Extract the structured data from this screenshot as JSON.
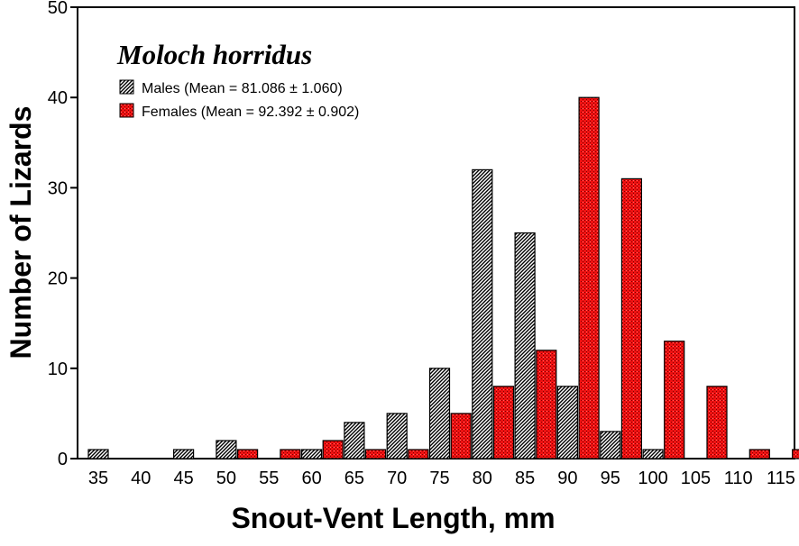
{
  "chart_data": {
    "type": "bar",
    "title": "Moloch horridus",
    "xlabel": "Snout-Vent Length, mm",
    "ylabel": "Number of Lizards",
    "ylim": [
      0,
      50
    ],
    "yticks": [
      0,
      10,
      20,
      30,
      40,
      50
    ],
    "grid": false,
    "legend_position": "top-left",
    "categories": [
      "35",
      "40",
      "45",
      "50",
      "55",
      "60",
      "65",
      "70",
      "75",
      "80",
      "85",
      "90",
      "95",
      "100",
      "105",
      "110",
      "115"
    ],
    "series": [
      {
        "name": "Males (Mean = 81.086 ± 1.060)",
        "pattern": "diagonal-hatch",
        "color": "#333333",
        "values": [
          1,
          0,
          1,
          2,
          0,
          1,
          4,
          5,
          10,
          32,
          25,
          8,
          3,
          1,
          0,
          0,
          0
        ]
      },
      {
        "name": "Females (Mean = 92.392 ± 0.902)",
        "pattern": "red-stipple",
        "color": "#ee1111",
        "values": [
          0,
          0,
          0,
          1,
          1,
          2,
          1,
          1,
          5,
          8,
          12,
          40,
          31,
          13,
          8,
          1,
          1
        ]
      }
    ]
  }
}
